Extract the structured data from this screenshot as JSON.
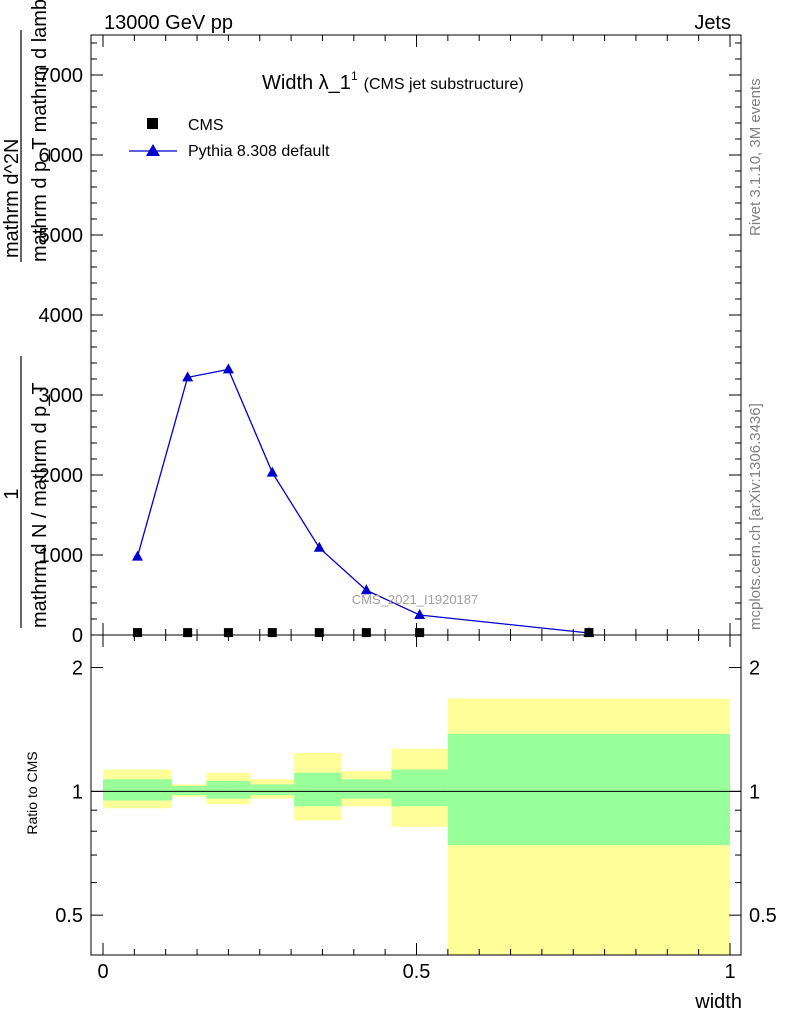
{
  "header": {
    "left": "13000 GeV pp",
    "right": "Jets"
  },
  "side_text": {
    "rivet": "Rivet 3.1.10,  3M events",
    "mcplots": "mcplots.cern.ch [arXiv:1306.3436]"
  },
  "watermark": "CMS_2021_I1920187",
  "chart_data": {
    "type": "line",
    "title": "Width λ_1",
    "title_superscript": "1",
    "subtitle": "(CMS jet substructure)",
    "ylabel_top": {
      "fraction_one": "1",
      "fraction_den": "mathrm d N / mathrm d p_T",
      "fraction_num2": "mathrm d^2N",
      "fraction_den2": "mathrm d p_T mathrm d lambda"
    },
    "xlabel": "width",
    "ratio_ylabel": "Ratio to CMS",
    "x_ticks": [
      "0",
      "0.5",
      "1"
    ],
    "y_ticks_main": [
      "1000",
      "2000",
      "3000",
      "4000",
      "5000",
      "6000",
      "7000"
    ],
    "y_tick_values_main": [
      1000,
      2000,
      3000,
      4000,
      5000,
      6000,
      7000
    ],
    "y_ticks_ratio": [
      "0.5",
      "1",
      "2"
    ],
    "y_tick_values_ratio": [
      0.5,
      1,
      2
    ],
    "xlim": [
      0,
      1
    ],
    "ylim_main": [
      0,
      7500
    ],
    "ylim_ratio": [
      0.4,
      2.4
    ],
    "legend_placement": "top-left",
    "series": [
      {
        "name": "CMS",
        "marker": "square",
        "color": "#000000",
        "x": [
          0.055,
          0.135,
          0.2,
          0.27,
          0.345,
          0.42,
          0.505,
          0.775
        ],
        "y": [
          5,
          5,
          5,
          5,
          5,
          5,
          5,
          5
        ]
      },
      {
        "name": "Pythia 8.308 default",
        "marker": "triangle",
        "color": "#0000cc",
        "x": [
          0.055,
          0.135,
          0.2,
          0.27,
          0.345,
          0.42,
          0.505,
          0.775
        ],
        "y": [
          980,
          3220,
          3320,
          2030,
          1090,
          560,
          250,
          25
        ]
      }
    ],
    "ratio_bands": [
      {
        "xlo": 0.0,
        "xhi": 0.11,
        "green": [
          0.95,
          1.07
        ],
        "yellow": [
          0.91,
          1.13
        ]
      },
      {
        "xlo": 0.11,
        "xhi": 0.165,
        "green": [
          0.98,
          1.03
        ],
        "yellow": [
          0.97,
          1.04
        ]
      },
      {
        "xlo": 0.165,
        "xhi": 0.235,
        "green": [
          0.96,
          1.06
        ],
        "yellow": [
          0.93,
          1.11
        ]
      },
      {
        "xlo": 0.235,
        "xhi": 0.305,
        "green": [
          0.98,
          1.04
        ],
        "yellow": [
          0.96,
          1.07
        ]
      },
      {
        "xlo": 0.305,
        "xhi": 0.38,
        "green": [
          0.92,
          1.11
        ],
        "yellow": [
          0.85,
          1.24
        ]
      },
      {
        "xlo": 0.38,
        "xhi": 0.46,
        "green": [
          0.96,
          1.07
        ],
        "yellow": [
          0.92,
          1.12
        ]
      },
      {
        "xlo": 0.46,
        "xhi": 0.55,
        "green": [
          0.92,
          1.13
        ],
        "yellow": [
          0.82,
          1.27
        ]
      },
      {
        "xlo": 0.55,
        "xhi": 1.0,
        "green": [
          0.74,
          1.38
        ],
        "yellow": [
          0.35,
          1.68
        ]
      }
    ],
    "colors": {
      "green_band": "#99ff99",
      "yellow_band": "#ffff99",
      "mc_line": "#0000cc",
      "data": "#000000"
    }
  }
}
